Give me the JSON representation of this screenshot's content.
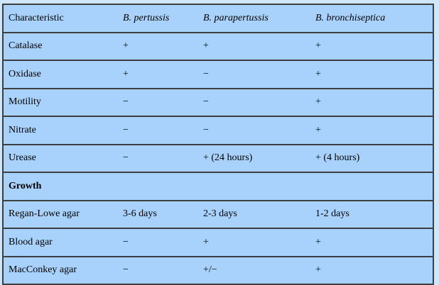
{
  "table": {
    "header": [
      "Characteristic",
      "B. pertussis",
      "B. parapertussis",
      "B. bronchiseptica"
    ],
    "rows": [
      [
        "Catalase",
        "+",
        "+",
        "+"
      ],
      [
        "Oxidase",
        "+",
        "−",
        "+"
      ],
      [
        "Motility",
        "−",
        "−",
        "+"
      ],
      [
        "Nitrate",
        "−",
        "−",
        "+"
      ],
      [
        "Urease",
        "−",
        "+ (24 hours)",
        "+ (4 hours)"
      ],
      [
        "Growth",
        "",
        "",
        ""
      ],
      [
        "Regan-Lowe agar",
        "3-6 days",
        "2-3 days",
        "1-2 days"
      ],
      [
        "Blood agar",
        "−",
        "+",
        "+"
      ],
      [
        "MacConkey agar",
        "−",
        "+/−",
        "+"
      ]
    ]
  },
  "colors": {
    "cell_background": "#a8d2fb",
    "border": "#3f3f3f"
  }
}
